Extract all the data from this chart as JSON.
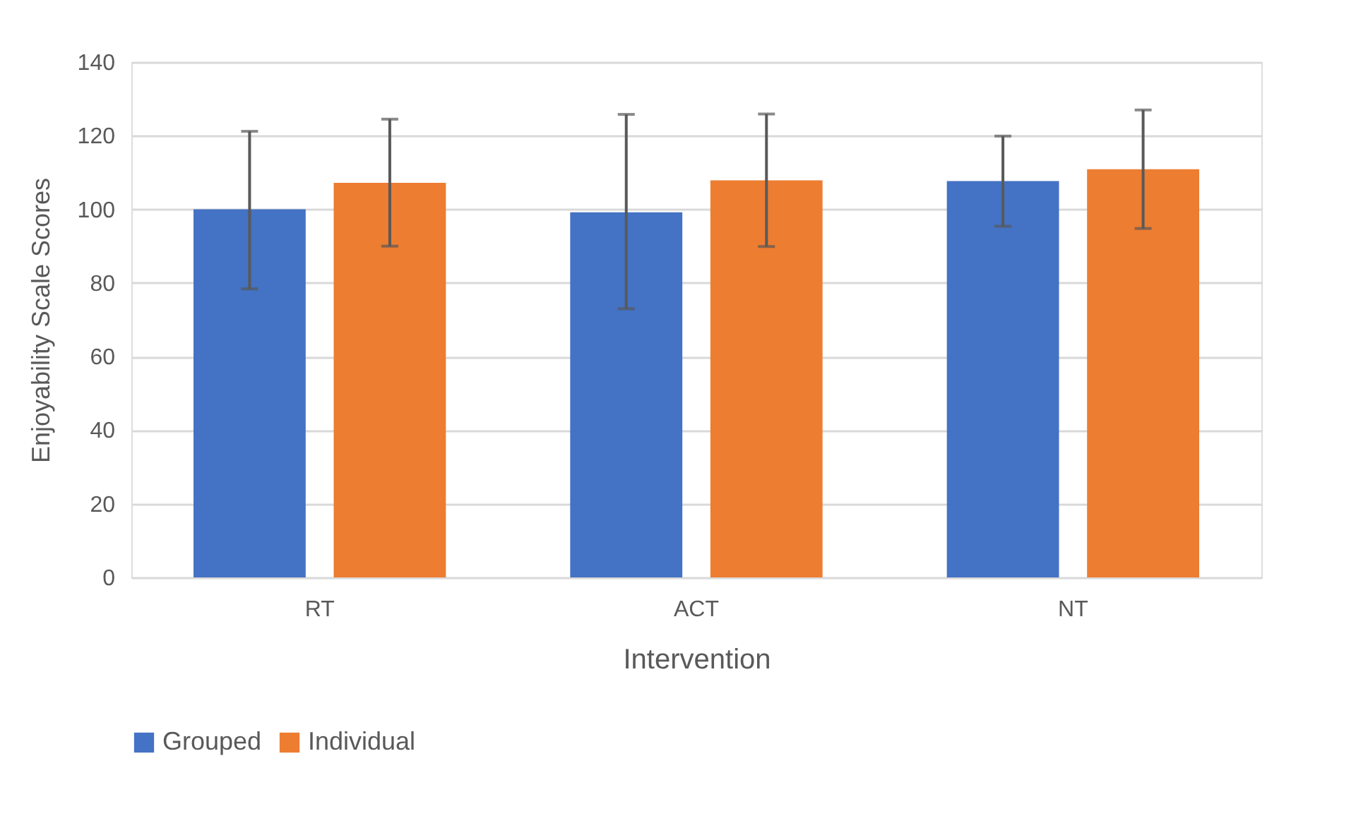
{
  "chart_data": {
    "type": "bar",
    "xlabel": "Intervention",
    "ylabel": "Enjoyability Scale Scores",
    "categories": [
      "RT",
      "ACT",
      "NT"
    ],
    "series": [
      {
        "name": "Grouped",
        "color": "#4472c4",
        "values": [
          100,
          99.2,
          107.7
        ],
        "errors": [
          [
            78.4,
            121.2
          ],
          [
            73.0,
            125.8
          ],
          [
            95.4,
            119.9
          ]
        ]
      },
      {
        "name": "Individual",
        "color": "#ed7d31",
        "values": [
          107.2,
          107.9,
          110.9
        ],
        "errors": [
          [
            90.0,
            124.5
          ],
          [
            89.9,
            125.9
          ],
          [
            94.8,
            127.0
          ]
        ]
      }
    ],
    "ylim": [
      0,
      140
    ],
    "yticks": [
      0,
      20,
      40,
      60,
      80,
      100,
      120,
      140
    ],
    "grid": "y",
    "legend": "bottom"
  }
}
